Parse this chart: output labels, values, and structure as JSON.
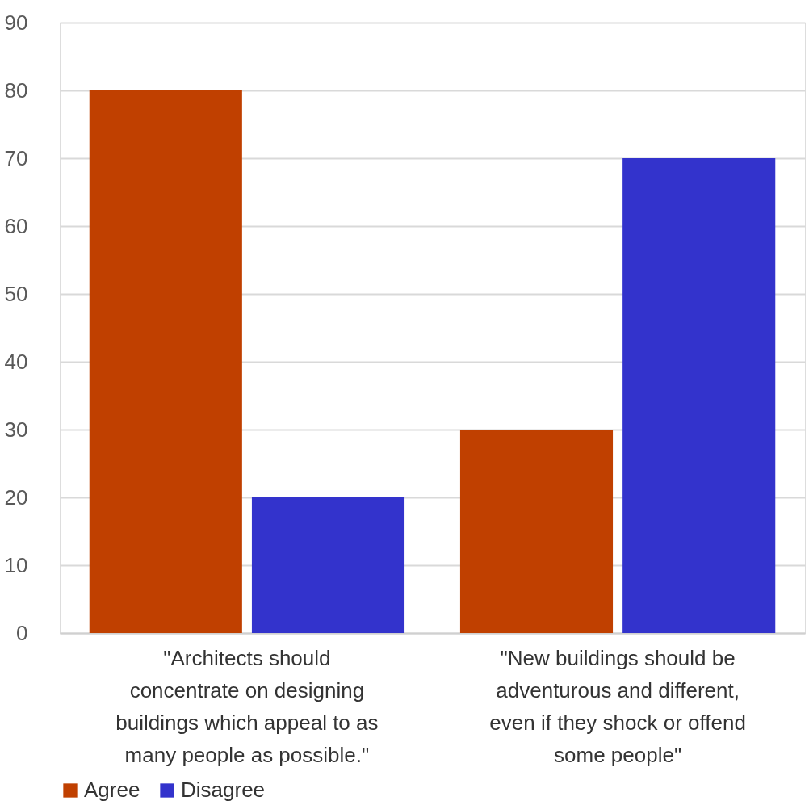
{
  "chart_data": {
    "type": "bar",
    "categories": [
      "\"Architects should concentrate on designing buildings which appeal to as many people as possible.\"",
      "\"New buildings should be adventurous and different, even if they shock or offend some people\""
    ],
    "series": [
      {
        "name": "Agree",
        "color": "#c04000",
        "values": [
          80,
          30
        ]
      },
      {
        "name": "Disagree",
        "color": "#3333cc",
        "values": [
          20,
          70
        ]
      }
    ],
    "ylim": [
      0,
      90
    ],
    "yticks": [
      0,
      10,
      20,
      30,
      40,
      50,
      60,
      70,
      80,
      90
    ],
    "grid": "y",
    "legend": "bottom"
  }
}
